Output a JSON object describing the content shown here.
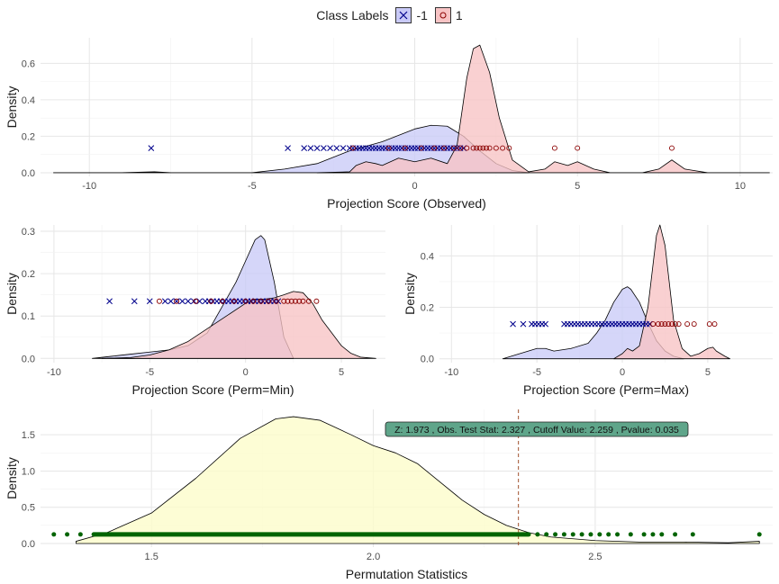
{
  "legend": {
    "title": "Class Labels",
    "items": [
      {
        "label": "-1",
        "fill": "#c9caf7",
        "point_color": "#00008b",
        "marker": "x"
      },
      {
        "label": "1",
        "fill": "#f7c3c4",
        "point_color": "#8b0000",
        "marker": "o"
      }
    ]
  },
  "chart_data": [
    {
      "id": "observed",
      "type": "density",
      "xlabel": "Projection Score (Observed)",
      "ylabel": "Density",
      "xlim": [
        -11.5,
        11.0
      ],
      "ylim": [
        -0.02,
        0.74
      ],
      "xticks": [
        -10,
        -5,
        0,
        5,
        10
      ],
      "yticks": [
        0.0,
        0.2,
        0.4,
        0.6
      ],
      "series": [
        {
          "name": "-1",
          "fill": "#c9caf7",
          "x": [
            -11.1,
            -9.0,
            -8.0,
            -7.5,
            -6.0,
            -5.0,
            -4.0,
            -3.0,
            -2.0,
            -1.0,
            0.0,
            0.5,
            1.0,
            1.5,
            2.0,
            2.5,
            3.0,
            3.5
          ],
          "y": [
            0,
            0,
            0.005,
            0,
            0,
            0,
            0.02,
            0.05,
            0.12,
            0.17,
            0.24,
            0.26,
            0.255,
            0.2,
            0.12,
            0.05,
            0.012,
            0
          ]
        },
        {
          "name": "1",
          "fill": "#f7c3c4",
          "x": [
            -3.0,
            -2.0,
            -1.8,
            -1.5,
            -1.2,
            -1.0,
            -0.5,
            0.0,
            0.5,
            1.0,
            1.3,
            1.6,
            1.8,
            2.0,
            2.3,
            2.6,
            3.0,
            3.5,
            4.0,
            4.3,
            4.7,
            5.0,
            5.5,
            6.0,
            7.0,
            7.5,
            7.9,
            8.3,
            9.0,
            10.9
          ],
          "y": [
            0,
            0.005,
            0.04,
            0.06,
            0.05,
            0.04,
            0.08,
            0.06,
            0.08,
            0.05,
            0.15,
            0.52,
            0.68,
            0.7,
            0.55,
            0.3,
            0.07,
            0.005,
            0.02,
            0.06,
            0.04,
            0.06,
            0.02,
            0,
            0,
            0.02,
            0.07,
            0.02,
            0,
            0
          ]
        }
      ],
      "points": [
        {
          "class": "-1",
          "y": 0.135,
          "x": [
            -8.1,
            -3.9,
            -3.4,
            -3.2,
            -3.0,
            -2.8,
            -2.6,
            -2.4,
            -2.2,
            -2.0,
            -1.9,
            -1.8,
            -1.7,
            -1.6,
            -1.5,
            -1.4,
            -1.3,
            -1.2,
            -1.1,
            -1.0,
            -0.9,
            -0.8,
            -0.7,
            -0.6,
            -0.5,
            -0.4,
            -0.3,
            -0.2,
            -0.1,
            0.0,
            0.1,
            0.2,
            0.3,
            0.4,
            0.5,
            0.6,
            0.7,
            0.8,
            0.9,
            1.0,
            1.1,
            1.2,
            1.3,
            1.4,
            1.5
          ]
        },
        {
          "class": "1",
          "y": 0.135,
          "x": [
            -1.9,
            -0.8,
            -0.3,
            0.2,
            0.6,
            0.9,
            1.2,
            1.4,
            1.6,
            1.8,
            1.9,
            2.0,
            2.1,
            2.2,
            2.3,
            2.5,
            2.7,
            2.9,
            4.3,
            5.0,
            7.9
          ]
        }
      ]
    },
    {
      "id": "perm-min",
      "type": "density",
      "xlabel": "Projection Score (Perm=Min)",
      "ylabel": "Density",
      "xlim": [
        -10.7,
        7.3
      ],
      "ylim": [
        -0.01,
        0.315
      ],
      "xticks": [
        -10,
        -5,
        0,
        5
      ],
      "yticks": [
        0.0,
        0.1,
        0.2,
        0.3
      ],
      "series": [
        {
          "name": "-1",
          "fill": "#c9caf7",
          "x": [
            -8.0,
            -7.0,
            -6.0,
            -5.0,
            -4.0,
            -3.0,
            -2.0,
            -1.5,
            -1.0,
            -0.5,
            0.0,
            0.5,
            0.8,
            1.0,
            1.5,
            2.0,
            2.5
          ],
          "y": [
            0,
            0.005,
            0.01,
            0.015,
            0.02,
            0.03,
            0.06,
            0.1,
            0.14,
            0.18,
            0.23,
            0.28,
            0.29,
            0.28,
            0.18,
            0.05,
            0
          ]
        },
        {
          "name": "1",
          "fill": "#f7c3c4",
          "x": [
            -7.5,
            -6.0,
            -5.0,
            -4.0,
            -3.0,
            -2.0,
            -1.0,
            0.0,
            0.5,
            1.0,
            1.5,
            2.0,
            2.5,
            3.0,
            3.5,
            4.0,
            4.5,
            5.0,
            5.5,
            6.0,
            6.8
          ],
          "y": [
            0,
            0.002,
            0.008,
            0.02,
            0.04,
            0.07,
            0.1,
            0.13,
            0.14,
            0.14,
            0.143,
            0.15,
            0.158,
            0.155,
            0.13,
            0.09,
            0.06,
            0.03,
            0.012,
            0.003,
            0
          ]
        }
      ],
      "points": [
        {
          "class": "-1",
          "y": 0.135,
          "x": [
            -7.1,
            -5.8,
            -5.0,
            -4.2,
            -3.9,
            -3.6,
            -3.3,
            -3.0,
            -2.7,
            -2.4,
            -2.1,
            -1.9,
            -1.7,
            -1.5,
            -1.3,
            -1.1,
            -0.9,
            -0.7,
            -0.5,
            -0.3,
            -0.1,
            0.1,
            0.3,
            0.5,
            0.7,
            0.9,
            1.1,
            1.3,
            1.5,
            1.7
          ]
        },
        {
          "class": "1",
          "y": 0.135,
          "x": [
            -4.5,
            -3.6,
            -2.6,
            -1.8,
            -1.2,
            -0.6,
            0.0,
            0.4,
            0.8,
            1.2,
            1.6,
            2.0,
            2.2,
            2.4,
            2.6,
            2.8,
            3.0,
            3.3,
            3.7
          ]
        }
      ]
    },
    {
      "id": "perm-max",
      "type": "density",
      "xlabel": "Projection Score (Perm=Max)",
      "ylabel": "Density",
      "xlim": [
        -10.7,
        8.8
      ],
      "ylim": [
        -0.015,
        0.52
      ],
      "xticks": [
        -10,
        -5,
        0,
        5
      ],
      "yticks": [
        0.0,
        0.2,
        0.4
      ],
      "series": [
        {
          "name": "-1",
          "fill": "#c9caf7",
          "x": [
            -7.0,
            -6.5,
            -6.0,
            -5.5,
            -5.0,
            -4.5,
            -4.0,
            -3.0,
            -2.0,
            -1.5,
            -1.0,
            -0.5,
            0.0,
            0.3,
            0.5,
            1.0,
            1.5,
            2.0,
            2.5,
            3.0,
            3.6
          ],
          "y": [
            0,
            0.01,
            0.02,
            0.03,
            0.04,
            0.04,
            0.03,
            0.04,
            0.06,
            0.1,
            0.15,
            0.22,
            0.27,
            0.28,
            0.27,
            0.22,
            0.14,
            0.07,
            0.03,
            0.01,
            0
          ]
        },
        {
          "name": "1",
          "fill": "#f7c3c4",
          "x": [
            -0.5,
            0.0,
            0.3,
            0.6,
            1.0,
            1.5,
            2.0,
            2.2,
            2.5,
            3.0,
            3.5,
            4.0,
            4.5,
            5.0,
            5.3,
            5.5,
            6.0,
            6.3
          ],
          "y": [
            0,
            0.02,
            0.04,
            0.03,
            0.05,
            0.2,
            0.48,
            0.52,
            0.44,
            0.15,
            0.04,
            0.01,
            0.02,
            0.04,
            0.045,
            0.03,
            0.01,
            0
          ]
        }
      ],
      "points": [
        {
          "class": "-1",
          "y": 0.135,
          "x": [
            -6.4,
            -5.8,
            -5.3,
            -5.1,
            -4.9,
            -4.7,
            -4.5,
            -3.4,
            -3.2,
            -3.0,
            -2.8,
            -2.6,
            -2.4,
            -2.2,
            -2.0,
            -1.8,
            -1.6,
            -1.4,
            -1.2,
            -1.0,
            -0.8,
            -0.6,
            -0.4,
            -0.2,
            0.0,
            0.2,
            0.4,
            0.6,
            0.8,
            1.0,
            1.2,
            1.4,
            1.6
          ]
        },
        {
          "class": "1",
          "y": 0.135,
          "x": [
            1.8,
            2.1,
            2.3,
            2.5,
            2.7,
            2.9,
            3.1,
            3.3,
            3.8,
            4.2,
            5.1,
            5.4
          ]
        }
      ]
    },
    {
      "id": "permutation",
      "type": "density",
      "xlabel": "Permutation Statistics",
      "ylabel": "Density",
      "xlim": [
        1.25,
        2.9
      ],
      "ylim": [
        -0.05,
        1.85
      ],
      "xticks": [
        1.5,
        2.0,
        2.5
      ],
      "yticks": [
        0.0,
        0.5,
        1.0,
        1.5
      ],
      "series": [
        {
          "name": "permutation",
          "fill": "#fdfdc9",
          "x": [
            1.33,
            1.4,
            1.5,
            1.6,
            1.7,
            1.78,
            1.82,
            1.88,
            1.95,
            2.0,
            2.05,
            2.1,
            2.15,
            2.2,
            2.25,
            2.3,
            2.35,
            2.4,
            2.5,
            2.6,
            2.7,
            2.8,
            2.87
          ],
          "y": [
            0.03,
            0.15,
            0.42,
            0.9,
            1.45,
            1.72,
            1.75,
            1.7,
            1.5,
            1.35,
            1.25,
            1.1,
            0.85,
            0.6,
            0.4,
            0.25,
            0.15,
            0.09,
            0.04,
            0.02,
            0.02,
            0.01,
            0.03
          ]
        }
      ],
      "rug_points": {
        "y": 0.125,
        "from": 1.37,
        "to": 2.35,
        "extra_x": [
          1.28,
          1.31,
          1.34,
          2.37,
          2.39,
          2.41,
          2.43,
          2.45,
          2.47,
          2.49,
          2.51,
          2.53,
          2.55,
          2.58,
          2.61,
          2.63,
          2.65,
          2.68,
          2.72,
          2.87
        ],
        "color": "#006400"
      },
      "vline": {
        "x": 2.327,
        "color": "#a0522d"
      },
      "annotation": {
        "text": "Z: 1.973 , Obs. Test Stat: 2.327 , Cutoff Value: 2.259 , Pvalue: 0.035",
        "fill": "#5fa58a"
      }
    }
  ]
}
